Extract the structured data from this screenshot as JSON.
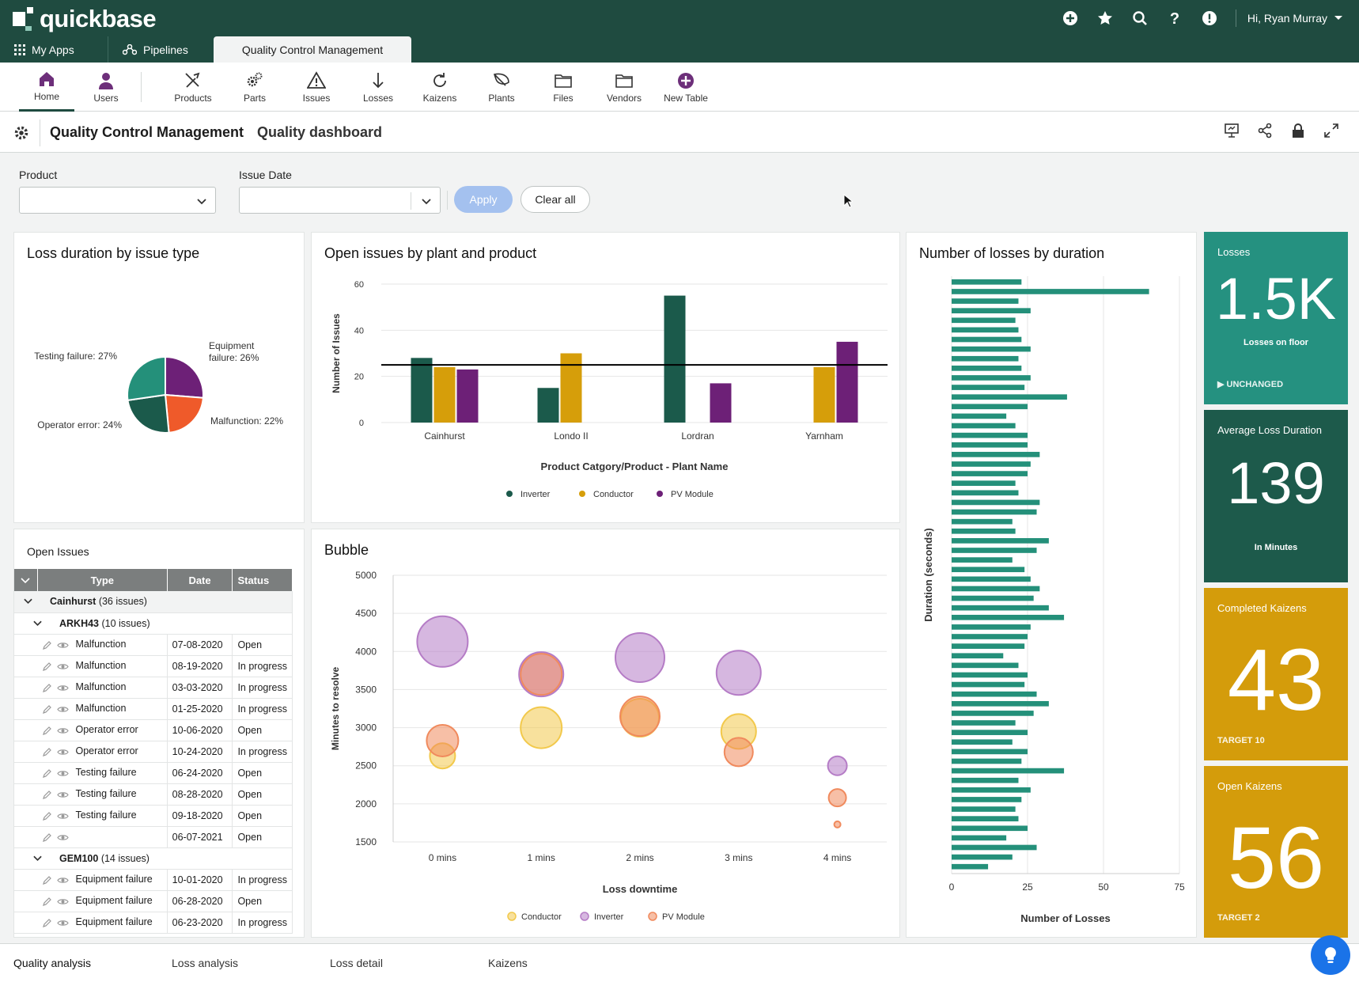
{
  "topbar": {
    "brand": "quickbase",
    "user": "Hi, Ryan Murray"
  },
  "apptabs": {
    "my_apps": "My Apps",
    "pipelines": "Pipelines",
    "active": "Quality Control Management"
  },
  "tables": [
    {
      "label": "Home",
      "icon": "home-icon"
    },
    {
      "label": "Users",
      "icon": "user-icon"
    },
    {
      "label": "Products",
      "icon": "tools-icon"
    },
    {
      "label": "Parts",
      "icon": "gears-icon"
    },
    {
      "label": "Issues",
      "icon": "warning-icon"
    },
    {
      "label": "Losses",
      "icon": "arrow-down-icon"
    },
    {
      "label": "Kaizens",
      "icon": "refresh-icon"
    },
    {
      "label": "Plants",
      "icon": "leaf-icon"
    },
    {
      "label": "Files",
      "icon": "folder-icon"
    },
    {
      "label": "Vendors",
      "icon": "folder-icon"
    },
    {
      "label": "New Table",
      "icon": "plus-circle-icon"
    }
  ],
  "page": {
    "app_title": "Quality Control Management",
    "dashboard_title": "Quality dashboard"
  },
  "filters": {
    "product_label": "Product",
    "issue_date_label": "Issue Date",
    "apply": "Apply",
    "clear": "Clear all"
  },
  "pie": {
    "title": "Loss duration by issue type",
    "chart_data": {
      "type": "pie",
      "slices": [
        {
          "label": "Equipment failure: 26%",
          "value": 26,
          "color": "#6d2077"
        },
        {
          "label": "Malfunction: 22%",
          "value": 22,
          "color": "#ef5a2a"
        },
        {
          "label": "Operator error: 24%",
          "value": 24,
          "color": "#1b5a4b"
        },
        {
          "label": "Testing failure: 27%",
          "value": 27,
          "color": "#24907a"
        }
      ]
    }
  },
  "barchart": {
    "title": "Open issues by plant and product",
    "chart_data": {
      "type": "bar",
      "categories": [
        "Cainhurst",
        "Londo II",
        "Lordran",
        "Yarnham"
      ],
      "series": [
        {
          "name": "Inverter",
          "values": [
            28,
            15,
            55,
            0
          ],
          "color": "#1b5a4b"
        },
        {
          "name": "Conductor",
          "values": [
            24,
            30,
            0,
            24
          ],
          "color": "#d69e0a"
        },
        {
          "name": "PV Module",
          "values": [
            23,
            0,
            17,
            35
          ],
          "color": "#6d2077"
        }
      ],
      "reference_line": 25,
      "ylim": [
        0,
        60
      ],
      "yticks": [
        0,
        20,
        40,
        60
      ],
      "xlabel": "Product Catgory/Product - Plant Name",
      "ylabel": "Number of Issues",
      "legend": "bottom"
    }
  },
  "hbar": {
    "title": "Number of losses by duration",
    "chart_data": {
      "type": "bar",
      "orientation": "horizontal",
      "values": [
        23,
        65,
        22,
        26,
        21,
        22,
        23,
        26,
        22,
        23,
        26,
        24,
        38,
        25,
        18,
        21,
        25,
        25,
        29,
        26,
        25,
        21,
        22,
        29,
        28,
        20,
        21,
        32,
        28,
        20,
        24,
        26,
        29,
        27,
        32,
        37,
        26,
        25,
        24,
        17,
        22,
        25,
        24,
        28,
        32,
        27,
        21,
        25,
        20,
        25,
        23,
        37,
        22,
        26,
        23,
        21,
        22,
        25,
        18,
        28,
        20,
        12
      ],
      "xlim": [
        0,
        75
      ],
      "xticks": [
        0,
        25,
        50,
        75
      ],
      "xlabel": "Number of Losses",
      "ylabel": "Duration (seconds)",
      "grid": true
    }
  },
  "kpis": [
    {
      "label": "Losses",
      "value": "1.5K",
      "sub": "Losses on floor",
      "foot": "▶ UNCHANGED",
      "color": "#259180"
    },
    {
      "label": "Average Loss Duration",
      "value": "139",
      "sub": "In Minutes",
      "foot": "",
      "color": "#1d5a4b"
    },
    {
      "label": "Completed Kaizens",
      "value": "43",
      "sub": "",
      "foot": "TARGET 10",
      "color": "#d49c0b"
    },
    {
      "label": "Open Kaizens",
      "value": "56",
      "sub": "",
      "foot": "TARGET 2",
      "color": "#d49c0b"
    }
  ],
  "open_issues": {
    "title": "Open Issues",
    "headers": [
      "Type",
      "Date",
      "Status"
    ],
    "group1": "Cainhurst",
    "group1_count": "(36 issues)",
    "sub1": "ARKH43",
    "sub1_count": "(10 issues)",
    "rows1": [
      [
        "Malfunction",
        "07-08-2020",
        "Open"
      ],
      [
        "Malfunction",
        "08-19-2020",
        "In progress"
      ],
      [
        "Malfunction",
        "03-03-2020",
        "In progress"
      ],
      [
        "Malfunction",
        "01-25-2020",
        "In progress"
      ],
      [
        "Operator error",
        "10-06-2020",
        "Open"
      ],
      [
        "Operator error",
        "10-24-2020",
        "In progress"
      ],
      [
        "Testing failure",
        "06-24-2020",
        "Open"
      ],
      [
        "Testing failure",
        "08-28-2020",
        "Open"
      ],
      [
        "Testing failure",
        "09-18-2020",
        "Open"
      ],
      [
        "",
        "06-07-2021",
        "Open"
      ]
    ],
    "sub2": "GEM100",
    "sub2_count": "(14 issues)",
    "rows2": [
      [
        "Equipment failure",
        "10-01-2020",
        "In progress"
      ],
      [
        "Equipment failure",
        "06-28-2020",
        "Open"
      ],
      [
        "Equipment failure",
        "06-23-2020",
        "In progress"
      ]
    ]
  },
  "bubble": {
    "title": "Bubble",
    "chart_data": {
      "type": "scatter",
      "categories": [
        "0 mins",
        "1 mins",
        "2 mins",
        "3 mins",
        "4 mins"
      ],
      "series": [
        {
          "name": "Conductor",
          "color": "#f2c94c",
          "points": [
            [
              0,
              2630,
              16
            ],
            [
              1,
              3000,
              26
            ],
            [
              2,
              3130,
              24
            ],
            [
              3,
              2950,
              22
            ]
          ]
        },
        {
          "name": "Inverter",
          "color": "#b57cc6",
          "points": [
            [
              0,
              4130,
              32
            ],
            [
              1,
              3700,
              28
            ],
            [
              2,
              3920,
              31
            ],
            [
              3,
              3720,
              28
            ],
            [
              4,
              2500,
              12
            ]
          ]
        },
        {
          "name": "PV Module",
          "color": "#f08a5d",
          "points": [
            [
              0,
              2830,
              20
            ],
            [
              1,
              3700,
              26
            ],
            [
              2,
              3150,
              25
            ],
            [
              3,
              2680,
              18
            ],
            [
              4,
              2080,
              11
            ],
            [
              4,
              1730,
              4
            ]
          ]
        }
      ],
      "ylim": [
        1500,
        5000
      ],
      "yticks": [
        1500,
        2000,
        2500,
        3000,
        3500,
        4000,
        4500,
        5000
      ],
      "xlabel": "Loss downtime",
      "ylabel": "Minutes to resolve",
      "legend": "bottom"
    }
  },
  "bottom_tabs": [
    "Quality analysis",
    "Loss analysis",
    "Loss detail",
    "Kaizens"
  ]
}
